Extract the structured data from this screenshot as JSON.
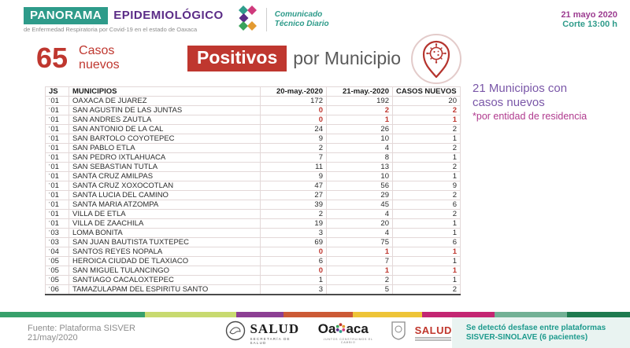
{
  "header": {
    "brand_badge": "PANORAMA",
    "brand_name": "EPIDEMIOLÓGICO",
    "brand_subtitle": "de Enfermedad Respiratoria por Covid-19 en el estado de Oaxaca",
    "comunicado_line1": "Comunicado",
    "comunicado_line2": "Técnico Diario",
    "date": "21 mayo 2020",
    "corte": "Corte 13:00 h"
  },
  "summary": {
    "count": "65",
    "label_line1": "Casos",
    "label_line2": "nuevos"
  },
  "title": {
    "highlight": "Positivos",
    "rest": "por Municipio"
  },
  "side_note": {
    "line1": "21 Municipios con",
    "line2": "casos nuevos",
    "line3": "*por entidad de residencia"
  },
  "table": {
    "columns": [
      "JS",
      "MUNICIPIOS",
      "20-may.-2020",
      "21-may.-2020",
      "CASOS NUEVOS"
    ],
    "js_tick": "'",
    "rows": [
      {
        "js": "01",
        "municipio": "OAXACA DE JUAREZ",
        "d20": "172",
        "d21": "192",
        "nuevos": "20",
        "highlight": false
      },
      {
        "js": "01",
        "municipio": "SAN AGUSTIN DE LAS JUNTAS",
        "d20": "0",
        "d21": "2",
        "nuevos": "2",
        "highlight": true
      },
      {
        "js": "01",
        "municipio": "SAN ANDRES ZAUTLA",
        "d20": "0",
        "d21": "1",
        "nuevos": "1",
        "highlight": true
      },
      {
        "js": "01",
        "municipio": "SAN ANTONIO DE LA CAL",
        "d20": "24",
        "d21": "26",
        "nuevos": "2",
        "highlight": false
      },
      {
        "js": "01",
        "municipio": "SAN BARTOLO COYOTEPEC",
        "d20": "9",
        "d21": "10",
        "nuevos": "1",
        "highlight": false
      },
      {
        "js": "01",
        "municipio": "SAN PABLO ETLA",
        "d20": "2",
        "d21": "4",
        "nuevos": "2",
        "highlight": false
      },
      {
        "js": "01",
        "municipio": "SAN PEDRO IXTLAHUACA",
        "d20": "7",
        "d21": "8",
        "nuevos": "1",
        "highlight": false
      },
      {
        "js": "01",
        "municipio": "SAN SEBASTIAN TUTLA",
        "d20": "11",
        "d21": "13",
        "nuevos": "2",
        "highlight": false
      },
      {
        "js": "01",
        "municipio": "SANTA CRUZ AMILPAS",
        "d20": "9",
        "d21": "10",
        "nuevos": "1",
        "highlight": false
      },
      {
        "js": "01",
        "municipio": "SANTA CRUZ XOXOCOTLAN",
        "d20": "47",
        "d21": "56",
        "nuevos": "9",
        "highlight": false
      },
      {
        "js": "01",
        "municipio": "SANTA LUCIA DEL CAMINO",
        "d20": "27",
        "d21": "29",
        "nuevos": "2",
        "highlight": false
      },
      {
        "js": "01",
        "municipio": "SANTA MARIA ATZOMPA",
        "d20": "39",
        "d21": "45",
        "nuevos": "6",
        "highlight": false
      },
      {
        "js": "01",
        "municipio": "VILLA DE ETLA",
        "d20": "2",
        "d21": "4",
        "nuevos": "2",
        "highlight": false
      },
      {
        "js": "01",
        "municipio": "VILLA DE ZAACHILA",
        "d20": "19",
        "d21": "20",
        "nuevos": "1",
        "highlight": false
      },
      {
        "js": "03",
        "municipio": "LOMA BONITA",
        "d20": "3",
        "d21": "4",
        "nuevos": "1",
        "highlight": false
      },
      {
        "js": "03",
        "municipio": "SAN JUAN BAUTISTA TUXTEPEC",
        "d20": "69",
        "d21": "75",
        "nuevos": "6",
        "highlight": false
      },
      {
        "js": "04",
        "municipio": "SANTOS REYES NOPALA",
        "d20": "0",
        "d21": "1",
        "nuevos": "1",
        "highlight": true
      },
      {
        "js": "05",
        "municipio": "HEROICA CIUDAD DE TLAXIACO",
        "d20": "6",
        "d21": "7",
        "nuevos": "1",
        "highlight": false
      },
      {
        "js": "05",
        "municipio": "SAN MIGUEL TULANCINGO",
        "d20": "0",
        "d21": "1",
        "nuevos": "1",
        "highlight": true
      },
      {
        "js": "05",
        "municipio": "SANTIAGO CACALOXTEPEC",
        "d20": "1",
        "d21": "2",
        "nuevos": "1",
        "highlight": false
      },
      {
        "js": "06",
        "municipio": "TAMAZULAPAM DEL ESPIRITU SANTO",
        "d20": "3",
        "d21": "5",
        "nuevos": "2",
        "highlight": false
      }
    ]
  },
  "stripe": [
    {
      "color": "#37a06b",
      "width": "23%"
    },
    {
      "color": "#c8da70",
      "width": "14.5%"
    },
    {
      "color": "#8c3f93",
      "width": "7.5%"
    },
    {
      "color": "#cc5a35",
      "width": "11%"
    },
    {
      "color": "#eec437",
      "width": "11%"
    },
    {
      "color": "#c32672",
      "width": "11.5%"
    },
    {
      "color": "#72b195",
      "width": "11.5%"
    },
    {
      "color": "#1d7a4e",
      "width": "10%"
    }
  ],
  "footer": {
    "fuente": "Fuente: Plataforma SISVER 21/may/2020",
    "salud_federal": "SALUD",
    "salud_federal_sub": "SECRETARÍA DE SALUD",
    "oaxaca_pre": "Oa",
    "oaxaca_post": "aca",
    "oaxaca_sub": "JUNTOS CONSTRUIMOS EL CAMBIO",
    "salud_estatal": "SALUD",
    "note_line1": "Se detectó desfase entre plataformas",
    "note_line2": "SISVER-SINOLAVE (6 pacientes)"
  },
  "colors": {
    "accent_red": "#bf372f",
    "teal": "#2e9b8a",
    "brand_purple": "#5b2c87",
    "note_purple": "#7a57a8",
    "note_magenta": "#b03a8e",
    "date_purple": "#9c3b90",
    "note_teal": "#1d9a8d"
  }
}
